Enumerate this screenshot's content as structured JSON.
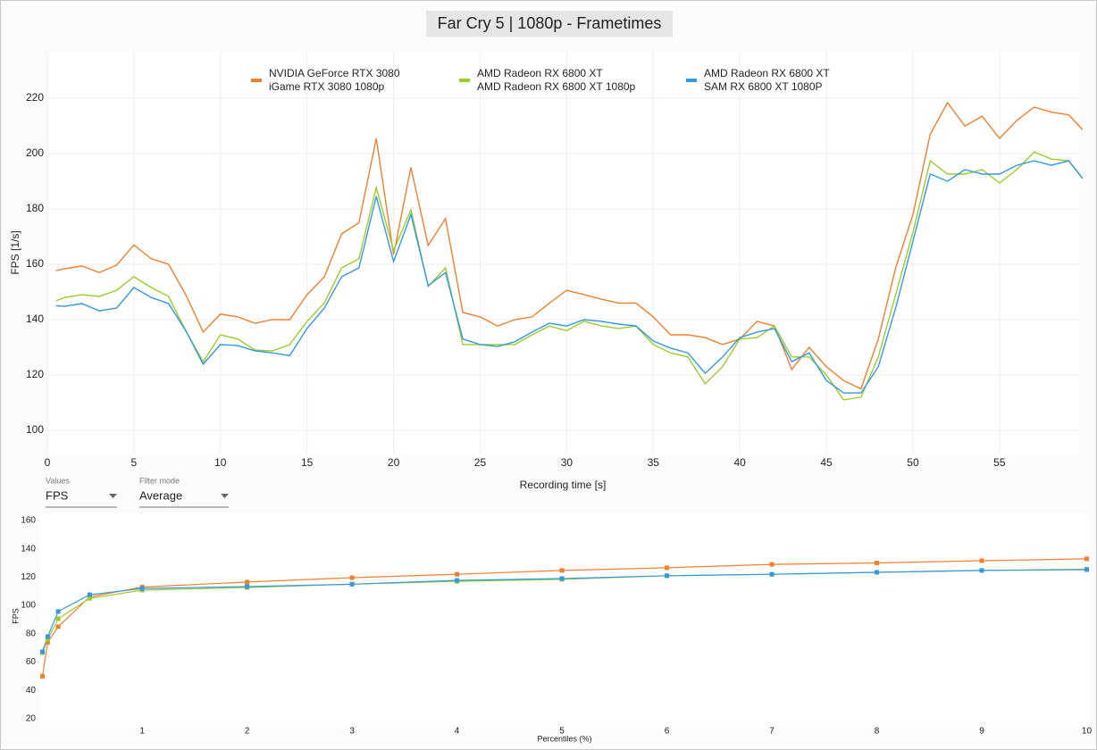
{
  "chart_data": [
    {
      "type": "line",
      "title": "Far Cry 5 | 1080p - Frametimes",
      "x_label": "Recording time [s]",
      "y_label": "FPS [1/s]",
      "xlim": [
        0,
        59.6
      ],
      "ylim": [
        91.6,
        236.8
      ],
      "xticks": [
        0,
        5,
        10,
        15,
        20,
        25,
        30,
        35,
        40,
        45,
        50,
        55
      ],
      "yticks": [
        100,
        120,
        140,
        160,
        180,
        200,
        220
      ],
      "grid": true,
      "legend": "top",
      "x": [
        0.5,
        1,
        2,
        3,
        4,
        5,
        6,
        7,
        8,
        9,
        10,
        11,
        12,
        13,
        14,
        15,
        16,
        17,
        18,
        19,
        20,
        21,
        22,
        23,
        24,
        25,
        26,
        27,
        28,
        29,
        30,
        31,
        32,
        33,
        34,
        35,
        36,
        37,
        38,
        39,
        40,
        41,
        42,
        43,
        44,
        45,
        46,
        47,
        48,
        49,
        50,
        51,
        52,
        53,
        54,
        55,
        56,
        57,
        58,
        59,
        59.8
      ],
      "series": [
        {
          "name": [
            "NVIDIA GeForce RTX 3080",
            "iGame RTX 3080 1080p"
          ],
          "color": "#f07f2f",
          "values": [
            157.7,
            158.4,
            159.4,
            157,
            159.7,
            167,
            162,
            160,
            149,
            135.5,
            142,
            141,
            138.7,
            140,
            140,
            149,
            155.5,
            171,
            175,
            205.5,
            163.5,
            195,
            166.8,
            176.5,
            142.6,
            141,
            137.7,
            140,
            141,
            146,
            150.6,
            149,
            147.4,
            146,
            146,
            141,
            134.5,
            134.5,
            133.5,
            131,
            133,
            139.4,
            137.7,
            122,
            130,
            123,
            118,
            115,
            133,
            158.7,
            178,
            207,
            218.4,
            210,
            213.5,
            205.5,
            212,
            216.8,
            215,
            214,
            208.7
          ]
        },
        {
          "name": [
            "AMD Radeon RX 6800 XT",
            "AMD Radeon RX 6800 XT 1080p"
          ],
          "color": "#9ccc2c",
          "values": [
            146.8,
            148,
            149,
            148.4,
            150.6,
            155.5,
            151.6,
            148.4,
            136,
            124.8,
            134.5,
            133,
            129,
            128.7,
            131,
            139.4,
            146,
            158.7,
            162,
            187.7,
            165,
            179.7,
            152,
            158.7,
            131,
            131,
            131,
            131,
            134.5,
            137.7,
            136,
            139.4,
            137.7,
            136.8,
            137.7,
            131,
            128,
            126.5,
            116.8,
            123,
            133,
            133.5,
            137.7,
            126.5,
            126.5,
            120,
            111,
            112,
            126.5,
            149,
            171.6,
            197.4,
            192.6,
            192.6,
            194.2,
            189.4,
            194.2,
            200.6,
            198,
            197.4,
            191
          ]
        },
        {
          "name": [
            "AMD Radeon RX 6800 XT",
            "SAM RX 6800 XT 1080P"
          ],
          "color": "#3399e0",
          "values": [
            145,
            144.8,
            145.8,
            143.2,
            144.2,
            151.6,
            148,
            145.8,
            136,
            123.9,
            131,
            130.6,
            128.7,
            128,
            127,
            136.8,
            144.2,
            155.5,
            158.7,
            184.5,
            161,
            178,
            152.3,
            157,
            133,
            131,
            130.3,
            132,
            135.5,
            138.7,
            137.7,
            140,
            139.4,
            138.4,
            137.7,
            132.3,
            129.7,
            128,
            120.6,
            126.5,
            133.5,
            135.5,
            136.8,
            124.8,
            128,
            118,
            113.5,
            113.5,
            123,
            144.2,
            168.4,
            192.6,
            190,
            194.2,
            192.6,
            192.6,
            195.8,
            197.4,
            195.8,
            197.4,
            191
          ]
        }
      ]
    },
    {
      "type": "line",
      "x_label": "Percentiles (%)",
      "y_label": "FPS",
      "xlim": [
        0.02,
        10.03
      ],
      "ylim": [
        13.7,
        165
      ],
      "xticks": [
        1,
        2,
        3,
        4,
        5,
        6,
        7,
        8,
        9,
        10
      ],
      "yticks": [
        20,
        40,
        60,
        80,
        100,
        120,
        140,
        160
      ],
      "markers": "square",
      "x": [
        0.05,
        0.1,
        0.2,
        0.5,
        1,
        2,
        3,
        4,
        5,
        6,
        7,
        8,
        9,
        10
      ],
      "series": [
        {
          "color": "#f07f2f",
          "values": [
            50,
            74,
            85,
            106,
            113,
            116.5,
            119.6,
            122,
            124.7,
            126.6,
            129,
            130,
            131.6,
            132.9
          ]
        },
        {
          "color": "#9ccc2c",
          "values": [
            66.7,
            76,
            90.6,
            105,
            110.8,
            112.7,
            115,
            117,
            118.4,
            121,
            122,
            123.4,
            124.7,
            125.6
          ]
        },
        {
          "color": "#3399e0",
          "values": [
            67.3,
            78,
            95.7,
            107.6,
            112,
            113.3,
            115,
            117.7,
            119,
            121,
            122,
            123.4,
            124.7,
            125.3
          ]
        }
      ]
    }
  ],
  "controls": [
    {
      "label": "Values",
      "value": "FPS"
    },
    {
      "label": "Filter mode",
      "value": "Average"
    }
  ]
}
